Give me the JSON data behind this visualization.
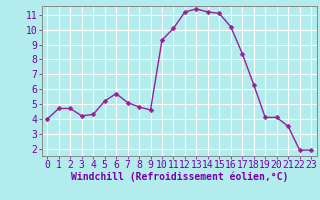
{
  "x": [
    0,
    1,
    2,
    3,
    4,
    5,
    6,
    7,
    8,
    9,
    10,
    11,
    12,
    13,
    14,
    15,
    16,
    17,
    18,
    19,
    20,
    21,
    22,
    23
  ],
  "y": [
    4.0,
    4.7,
    4.7,
    4.2,
    4.3,
    5.2,
    5.7,
    5.1,
    4.8,
    4.6,
    9.3,
    10.1,
    11.2,
    11.4,
    11.2,
    11.1,
    10.2,
    8.4,
    6.3,
    4.1,
    4.1,
    3.5,
    1.9,
    1.9
  ],
  "line_color": "#991f99",
  "marker_color": "#991f99",
  "bg_color": "#b2ecec",
  "grid_color": "#ffffff",
  "xlabel": "Windchill (Refroidissement éolien,°C)",
  "xlabel_color": "#7700aa",
  "tick_color": "#7700aa",
  "spine_color": "#888888",
  "ylim": [
    1.5,
    11.6
  ],
  "xlim": [
    -0.5,
    23.5
  ],
  "yticks": [
    2,
    3,
    4,
    5,
    6,
    7,
    8,
    9,
    10,
    11
  ],
  "xticks": [
    0,
    1,
    2,
    3,
    4,
    5,
    6,
    7,
    8,
    9,
    10,
    11,
    12,
    13,
    14,
    15,
    16,
    17,
    18,
    19,
    20,
    21,
    22,
    23
  ],
  "font_name": "monospace",
  "marker_size": 2.5,
  "line_width": 1.0,
  "tick_fontsize": 7.0,
  "xlabel_fontsize": 7.0
}
